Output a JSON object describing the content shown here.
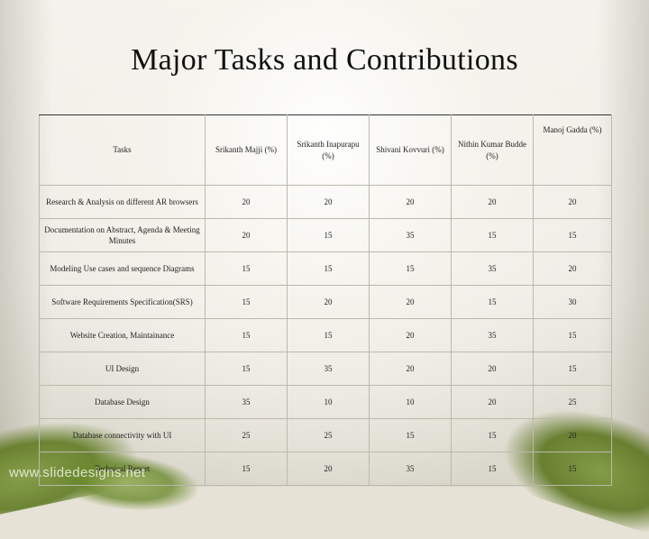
{
  "slide": {
    "title": "Major Tasks and Contributions",
    "watermark": "www.slidedesigns.net"
  },
  "table": {
    "headers": [
      "Tasks",
      "Srikanth Majji (%)",
      "Srikanth Inapurapu (%)",
      "Shivani Kovvuri (%)",
      "Nithin Kumar Budde (%)",
      "Manoj Gadda (%)"
    ],
    "rows": [
      [
        "Research & Analysis on different AR browsers",
        "20",
        "20",
        "20",
        "20",
        "20"
      ],
      [
        "Documentation on Abstract, Agenda & Meeting Minutes",
        "20",
        "15",
        "35",
        "15",
        "15"
      ],
      [
        "Modeling Use cases and sequence Diagrams",
        "15",
        "15",
        "15",
        "35",
        "20"
      ],
      [
        "Software Requirements Specification(SRS)",
        "15",
        "20",
        "20",
        "15",
        "30"
      ],
      [
        "Website Creation, Maintainance",
        "15",
        "15",
        "20",
        "35",
        "15"
      ],
      [
        "UI Design",
        "15",
        "35",
        "20",
        "20",
        "15"
      ],
      [
        "Database Design",
        "35",
        "10",
        "10",
        "20",
        "25"
      ],
      [
        "Database connectivity with UI",
        "25",
        "25",
        "15",
        "15",
        "20"
      ],
      [
        "Technical Report",
        "15",
        "20",
        "35",
        "15",
        "15"
      ]
    ]
  }
}
